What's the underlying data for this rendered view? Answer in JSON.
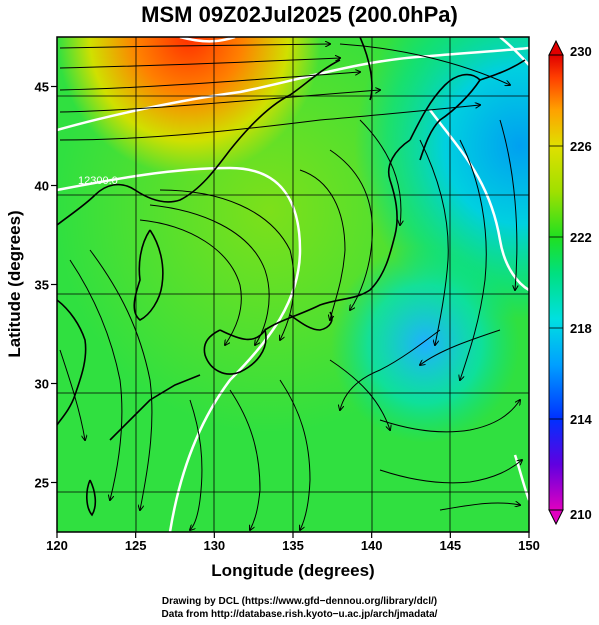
{
  "title": "MSM 09Z02Jul2025 (200.0hPa)",
  "x_axis": {
    "label": "Longitude (degrees)",
    "range": [
      120,
      150
    ],
    "ticks": [
      120,
      125,
      130,
      135,
      140,
      145,
      150
    ]
  },
  "y_axis": {
    "label": "Latitude  (degrees)",
    "range": [
      22.5,
      47.5
    ],
    "ticks": [
      25,
      30,
      35,
      40,
      45
    ]
  },
  "colorbar": {
    "range": [
      210,
      230
    ],
    "ticks": [
      210,
      214,
      218,
      222,
      226,
      230
    ],
    "colors": [
      "#e000c0",
      "#6000e0",
      "#0030ff",
      "#00a0ff",
      "#00e0e0",
      "#00e080",
      "#20e020",
      "#a0e000",
      "#e0e000",
      "#ffa000",
      "#ff4000",
      "#e00000"
    ]
  },
  "contour_label": "12300.0",
  "footer": {
    "line1": "Drawing by DCL (https://www.gfd−dennou.org/library/dcl/)",
    "line2": "Data from http://database.rish.kyoto−u.ac.jp/arch/jmadata/"
  }
}
